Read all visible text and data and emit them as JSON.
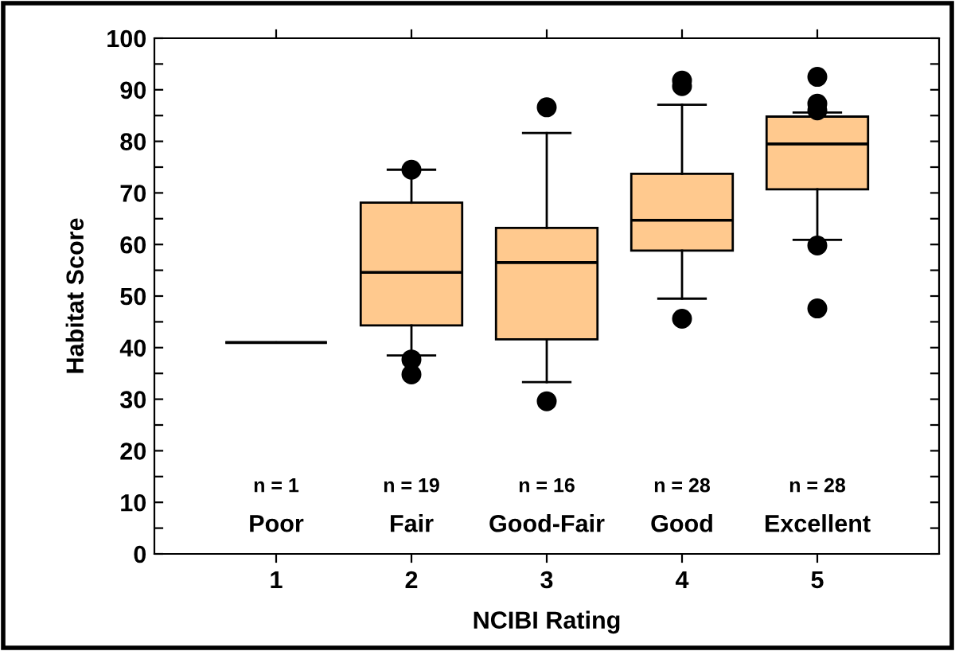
{
  "chart_data": {
    "type": "box",
    "xlabel": "NCIBI Rating",
    "ylabel": "Habitat Score",
    "categories": [
      "1",
      "2",
      "3",
      "4",
      "5"
    ],
    "colors": [
      "#000000",
      "#ffc98e",
      "#ffc98e",
      "#ffc98e",
      "#ffc98e"
    ],
    "boxes": [
      {
        "low": 41,
        "q1": 41,
        "median": 41,
        "q3": 41,
        "high": 41
      },
      {
        "low": 38.5,
        "q1": 44.3,
        "median": 54.6,
        "q3": 68.1,
        "high": 74.5,
        "outliers": [
          74.5,
          37.7,
          34.8
        ]
      },
      {
        "low": 33.3,
        "q1": 41.6,
        "median": 56.5,
        "q3": 63.2,
        "high": 81.6,
        "outliers": [
          86.6,
          29.6
        ]
      },
      {
        "low": 49.5,
        "q1": 58.8,
        "median": 64.7,
        "q3": 73.7,
        "high": 87.1,
        "outliers": [
          91.8,
          90.7,
          45.6
        ]
      },
      {
        "low": 60.9,
        "q1": 70.7,
        "median": 79.5,
        "q3": 84.8,
        "high": 85.6,
        "outliers": [
          92.5,
          87.3,
          86.0,
          59.8,
          47.6
        ]
      }
    ],
    "ylim": [
      0,
      100
    ],
    "yticks": [
      0,
      {
        "value": 5,
        "label": null
      },
      10,
      {
        "value": 15,
        "label": null
      },
      20,
      {
        "value": 25,
        "label": null
      },
      30,
      {
        "value": 35,
        "label": null
      },
      40,
      {
        "value": 45,
        "label": null
      },
      50,
      {
        "value": 55,
        "label": null
      },
      60,
      {
        "value": 65,
        "label": null
      },
      70,
      {
        "value": 75,
        "label": null
      },
      80,
      {
        "value": 85,
        "label": null
      },
      90,
      {
        "value": 95,
        "label": null
      },
      100
    ],
    "grid": false,
    "marker": "circle",
    "annotations": [
      "n = 1",
      "n = 19",
      "n = 16",
      "n = 28",
      "n = 28",
      "Poor",
      "Fair",
      "Good-Fair",
      "Good",
      "Excellent"
    ]
  }
}
